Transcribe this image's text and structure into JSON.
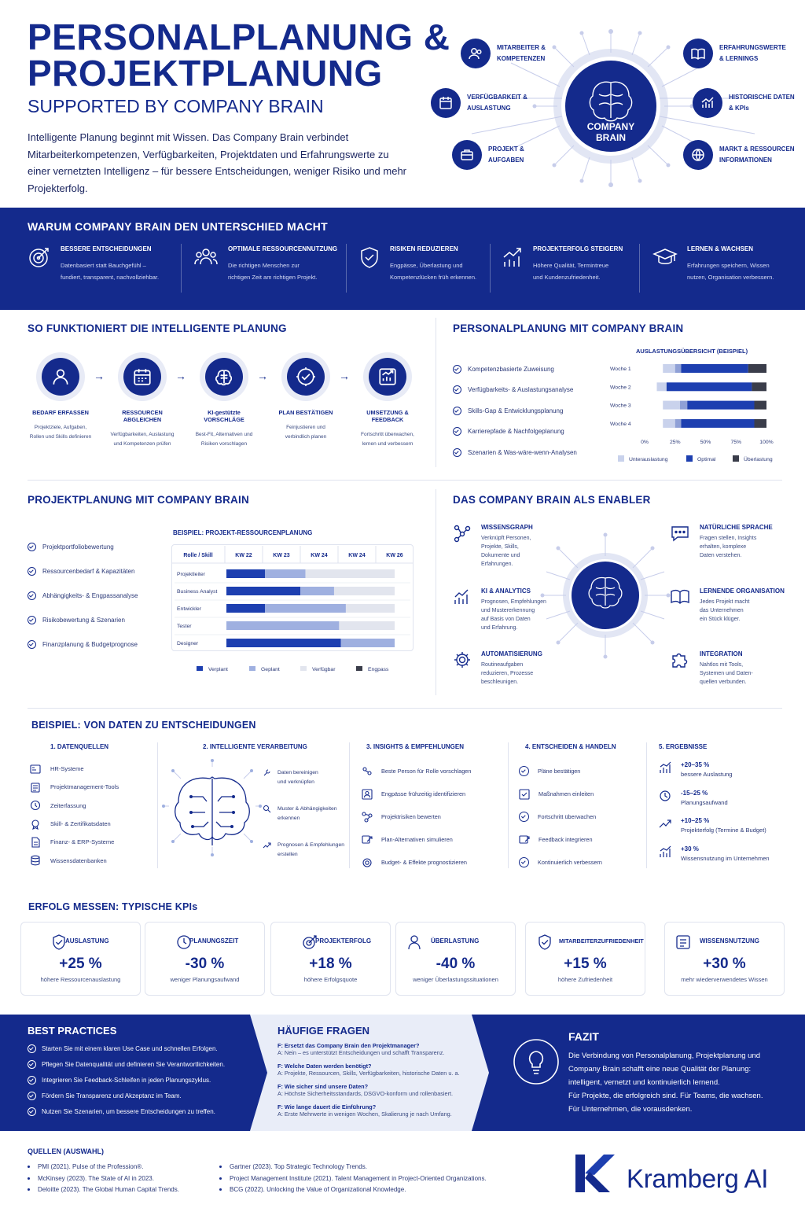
{
  "header": {
    "title_line1": "PERSONALPLANUNG &",
    "title_line2": "PROJEKTPLANUNG",
    "subtitle": "SUPPORTED BY COMPANY BRAIN",
    "intro": "Intelligente Planung beginnt mit Wissen. Das Company Brain verbindet Mitarbeiterkompetenzen, Verfügbarkeiten, Projektdaten und Erfahrungswerte zu einer vernetzten Intelligenz – für bessere Entscheidungen, weniger Risiko und mehr Projekterfolg.",
    "brain_label_1": "COMPANY",
    "brain_label_2": "BRAIN",
    "nodes": [
      {
        "l1": "MITARBEITER &",
        "l2": "KOMPETENZEN",
        "icon": "people-icon"
      },
      {
        "l1": "VERFÜGBARKEIT &",
        "l2": "AUSLASTUNG",
        "icon": "calendar-icon"
      },
      {
        "l1": "PROJEKT &",
        "l2": "AUFGABEN",
        "icon": "briefcase-icon"
      },
      {
        "l1": "ERFAHRUNGSWERTE",
        "l2": "& LERNINGS",
        "icon": "book-icon"
      },
      {
        "l1": "HISTORISCHE DATEN",
        "l2": "& KPIs",
        "icon": "chart-icon"
      },
      {
        "l1": "MARKT & RESSOURCEN",
        "l2": "INFORMATIONEN",
        "icon": "globe-icon"
      }
    ]
  },
  "why": {
    "title": "WARUM COMPANY BRAIN DEN UNTERSCHIED MACHT",
    "items": [
      {
        "title": "BESSERE ENTSCHEIDUNGEN",
        "l1": "Datenbasiert statt Bauchgefühl –",
        "l2": "fundiert, transparent, nachvollziehbar.",
        "icon": "target-icon"
      },
      {
        "title": "OPTIMALE RESSOURCENNUTZUNG",
        "l1": "Die richtigen Menschen zur",
        "l2": "richtigen Zeit am richtigen Projekt.",
        "icon": "team-icon"
      },
      {
        "title": "RISIKEN REDUZIEREN",
        "l1": "Engpässe, Überlastung und",
        "l2": "Kompetenzlücken früh erkennen.",
        "icon": "shield-icon"
      },
      {
        "title": "PROJEKTERFOLG STEIGERN",
        "l1": "Höhere Qualität, Termintreue",
        "l2": "und Kundenzufriedenheit.",
        "icon": "growth-icon"
      },
      {
        "title": "LERNEN & WACHSEN",
        "l1": "Erfahrungen speichern, Wissen",
        "l2": "nutzen, Organisation verbessern.",
        "icon": "graduation-icon"
      }
    ]
  },
  "how": {
    "title": "SO FUNKTIONIERT DIE INTELLIGENTE PLANUNG",
    "steps": [
      {
        "title": "BEDARF ERFASSEN",
        "l1": "Projektziele, Aufgaben,",
        "l2": "Rollen und Skills definieren",
        "icon": "user-icon"
      },
      {
        "title": "RESSOURCEN ABGLEICHEN",
        "l1": "Verfügbarkeiten, Auslastung",
        "l2": "und Kompetenzen prüfen",
        "icon": "calendar-icon"
      },
      {
        "title": "KI-gestützte VORSCHLÄGE",
        "l1": "Best-Fit, Alternativen und",
        "l2": "Risiken vorschlagen",
        "icon": "brain-icon"
      },
      {
        "title": "PLAN BESTÄTIGEN",
        "l1": "Feinjustieren und",
        "l2": "verbindlich planen",
        "icon": "check-icon"
      },
      {
        "title": "UMSETZUNG & FEEDBACK",
        "l1": "Fortschritt überwachen,",
        "l2": "lernen und verbessern",
        "icon": "chart-icon"
      }
    ]
  },
  "personal": {
    "title": "PERSONALPLANUNG MIT COMPANY BRAIN",
    "items": [
      "Kompetenzbasierte Zuweisung",
      "Verfügbarkeits- & Auslastungsanalyse",
      "Skills-Gap & Entwicklungsplanung",
      "Karrierepfade & Nachfolgeplanung",
      "Szenarien & Was-wäre-wenn-Analysen"
    ]
  },
  "chart_data": [
    {
      "type": "bar",
      "title": "AUSLASTUNGSÜBERSICHT (BEISPIEL)",
      "orientation": "horizontal-stacked",
      "categories": [
        "Woche 1",
        "Woche 2",
        "Woche 3",
        "Woche 4"
      ],
      "xticks": [
        "0%",
        "25%",
        "50%",
        "75%",
        "100%"
      ],
      "xlim": [
        0,
        100
      ],
      "series": [
        {
          "name": "Unterauslastung",
          "color": "#c9d2ec",
          "values": [
            10,
            8,
            14,
            10
          ]
        },
        {
          "name": "Optimal",
          "color": "#1d3fb0",
          "values": [
            55,
            70,
            55,
            60
          ]
        },
        {
          "name": "Überlastung",
          "color": "#3a3d4a",
          "values": [
            15,
            12,
            10,
            10
          ]
        }
      ],
      "light_series": {
        "color": "#8fa0d6",
        "values": [
          5,
          0,
          6,
          5
        ]
      }
    },
    {
      "type": "bar",
      "title": "BEISPIEL: PROJEKT-RESSOURCENPLANUNG",
      "orientation": "gantt",
      "header": [
        "Rolle / Skill",
        "KW 22",
        "KW 23",
        "KW 24",
        "KW 24",
        "KW 26"
      ],
      "categories": [
        "Projektleiter",
        "Business Analyst",
        "Entwickler",
        "Tester",
        "Designer"
      ],
      "series": [
        {
          "name": "Verplant",
          "color": "#1d3fb0"
        },
        {
          "name": "Geplant",
          "color": "#9fb0e0"
        },
        {
          "name": "Verfügbar",
          "color": "#e2e5ee"
        },
        {
          "name": "Engpass",
          "color": "#3a3d4a"
        }
      ],
      "rows": [
        [
          [
            "Verplant",
            0,
            0.23
          ],
          [
            "Geplant",
            0.23,
            0.47
          ],
          [
            "Verfügbar",
            0.47,
            1
          ]
        ],
        [
          [
            "Verplant",
            0,
            0.44
          ],
          [
            "Geplant",
            0.44,
            0.64
          ],
          [
            "Verfügbar",
            0.64,
            1
          ]
        ],
        [
          [
            "Verplant",
            0,
            0.23
          ],
          [
            "Geplant",
            0.23,
            0.71
          ],
          [
            "Verfügbar",
            0.71,
            1
          ]
        ],
        [
          [
            "Geplant",
            0,
            0.67
          ],
          [
            "Verfügbar",
            0.67,
            1
          ]
        ],
        [
          [
            "Verplant",
            0,
            0.68
          ],
          [
            "Geplant",
            0.68,
            1
          ]
        ]
      ]
    }
  ],
  "projekt": {
    "title": "PROJEKTPLANUNG MIT COMPANY BRAIN",
    "items": [
      "Projektportfoliobewertung",
      "Ressourcenbedarf & Kapazitäten",
      "Abhängigkeits- & Engpassanalyse",
      "Risikobewertung & Szenarien",
      "Finanzplanung & Budgetprognose"
    ],
    "table_title": "BEISPIEL: PROJEKT-RESSOURCENPLANUNG"
  },
  "enabler": {
    "title": "DAS COMPANY BRAIN ALS ENABLER",
    "items": [
      {
        "title": "WISSENSGRAPH",
        "lines": [
          "Verknüpft Personen,",
          "Projekte, Skills,",
          "Dokumente und",
          "Erfahrungen."
        ],
        "icon": "graph-icon"
      },
      {
        "title": "KI & ANALYTICS",
        "lines": [
          "Prognosen, Empfehlungen",
          "und Mustererkennung",
          "auf Basis von Daten",
          "und Erfahrung."
        ],
        "icon": "analytics-icon"
      },
      {
        "title": "AUTOMATISIERUNG",
        "lines": [
          "Routineaufgaben",
          "reduzieren, Prozesse",
          "beschleunigen."
        ],
        "icon": "gear-icon"
      },
      {
        "title": "NATÜRLICHE SPRACHE",
        "lines": [
          "Fragen stellen, Insights",
          "erhalten, komplexe",
          "Daten verstehen."
        ],
        "icon": "chat-icon"
      },
      {
        "title": "LERNENDE ORGANISATION",
        "lines": [
          "Jedes Projekt macht",
          "das Unternehmen",
          "ein Stück klüger."
        ],
        "icon": "book-icon"
      },
      {
        "title": "INTEGRATION",
        "lines": [
          "Nahtlos mit Tools,",
          "Systemen und Daten-",
          "quellen verbunden."
        ],
        "icon": "puzzle-icon"
      }
    ]
  },
  "example": {
    "title": "BEISPIEL: VON DATEN ZU ENTSCHEIDUNGEN",
    "col1": {
      "title": "1. DATENQUELLEN",
      "items": [
        "HR-Systeme",
        "Projektmanagement-Tools",
        "Zeiterfassung",
        "Skill- & Zertifikatsdaten",
        "Finanz- & ERP-Systeme",
        "Wissensdatenbanken"
      ]
    },
    "col2": {
      "title": "2. INTELLIGENTE VERARBEITUNG",
      "items": [
        [
          "Daten bereinigen",
          "und verknüpfen"
        ],
        [
          "Muster & Abhängigkeiten",
          "erkennen"
        ],
        [
          "Prognosen & Empfehlungen",
          "erstellen"
        ]
      ]
    },
    "col3": {
      "title": "3. INSIGHTS & EMPFEHLUNGEN",
      "items": [
        "Beste Person für Rolle vorschlagen",
        "Engpässe frühzeitig identifizieren",
        "Projektrisiken bewerten",
        "Plan-Alternativen simulieren",
        "Budget- & Effekte prognostizieren"
      ]
    },
    "col4": {
      "title": "4. ENTSCHEIDEN & HANDELN",
      "items": [
        "Pläne bestätigen",
        "Maßnahmen einleiten",
        "Fortschritt überwachen",
        "Feedback integrieren",
        "Kontinuierlich verbessern"
      ]
    },
    "col5": {
      "title": "5. ERGEBNISSE",
      "items": [
        [
          "+20–35 %",
          "bessere Auslastung"
        ],
        [
          "-15–25 %",
          "Planungsaufwand"
        ],
        [
          "+10–25 %",
          "Projekterfolg (Termine & Budget)"
        ],
        [
          "+30 %",
          "Wissensnutzung im Unternehmen"
        ]
      ]
    }
  },
  "kpis": {
    "title": "ERFOLG MESSEN: TYPISCHE KPIs",
    "items": [
      {
        "label": "AUSLASTUNG",
        "value": "+25 %",
        "sub": "höhere Ressourcenauslastung",
        "icon": "shield-check-icon"
      },
      {
        "label": "PLANUNGSZEIT",
        "value": "-30 %",
        "sub": "weniger Planungsaufwand",
        "icon": "clock-icon"
      },
      {
        "label": "PROJEKTERFOLG",
        "value": "+18 %",
        "sub": "höhere Erfolgsquote",
        "icon": "target-icon"
      },
      {
        "label": "ÜBERLASTUNG",
        "value": "-40 %",
        "sub": "weniger Überlastungssituationen",
        "icon": "person-icon"
      },
      {
        "label": "MITARBEITERZUFRIEDENHEIT",
        "value": "+15 %",
        "sub": "höhere Zufriedenheit",
        "icon": "shield-check-icon"
      },
      {
        "label": "WISSENSNUTZUNG",
        "value": "+30 %",
        "sub": "mehr wiederverwendetes Wissen",
        "icon": "knowledge-icon"
      }
    ]
  },
  "best": {
    "title": "BEST PRACTICES",
    "items": [
      "Starten Sie mit einem klaren Use Case und schnellen Erfolgen.",
      "Pflegen Sie Datenqualität und definieren Sie Verantwortlichkeiten.",
      "Integrieren Sie Feedback-Schleifen in jeden Planungszyklus.",
      "Fördern Sie Transparenz und Akzeptanz im Team.",
      "Nutzen Sie Szenarien, um bessere Entscheidungen zu treffen."
    ]
  },
  "faq": {
    "title": "HÄUFIGE FRAGEN",
    "items": [
      {
        "q": "F: Ersetzt das Company Brain den Projektmanager?",
        "a": "A: Nein – es unterstützt Entscheidungen und schafft Transparenz."
      },
      {
        "q": "F: Welche Daten werden benötigt?",
        "a": "A: Projekte, Ressourcen, Skills, Verfügbarkeiten, historische Daten u. a."
      },
      {
        "q": "F: Wie sicher sind unsere Daten?",
        "a": "A: Höchste Sicherheitsstandards, DSGVO-konform und rollenbasiert."
      },
      {
        "q": "F: Wie lange dauert die Einführung?",
        "a": "A: Erste Mehrwerte in wenigen Wochen, Skalierung je nach Umfang."
      }
    ]
  },
  "fazit": {
    "title": "FAZIT",
    "lines": [
      "Die Verbindung von Personalplanung, Projektplanung und",
      "Company Brain schafft eine neue Qualität der Planung:",
      "intelligent, vernetzt und kontinuierlich lernend.",
      "Für Projekte, die erfolgreich sind. Für Teams, die wachsen.",
      "Für Unternehmen, die vorausdenken."
    ]
  },
  "sources": {
    "title": "QUELLEN (AUSWAHL)",
    "left": [
      "PMI (2021). Pulse of the Profession®.",
      "McKinsey (2023). The State of AI in 2023.",
      "Deloitte (2023). The Global Human Capital Trends."
    ],
    "right": [
      "Gartner (2023). Top Strategic Technology Trends.",
      "Project Management Institute (2021). Talent Management in Project-Oriented Organizations.",
      "BCG (2022). Unlocking the Value of Organizational Knowledge."
    ]
  },
  "brand": {
    "name": "Kramberg AI",
    "logo_letter": "K"
  }
}
